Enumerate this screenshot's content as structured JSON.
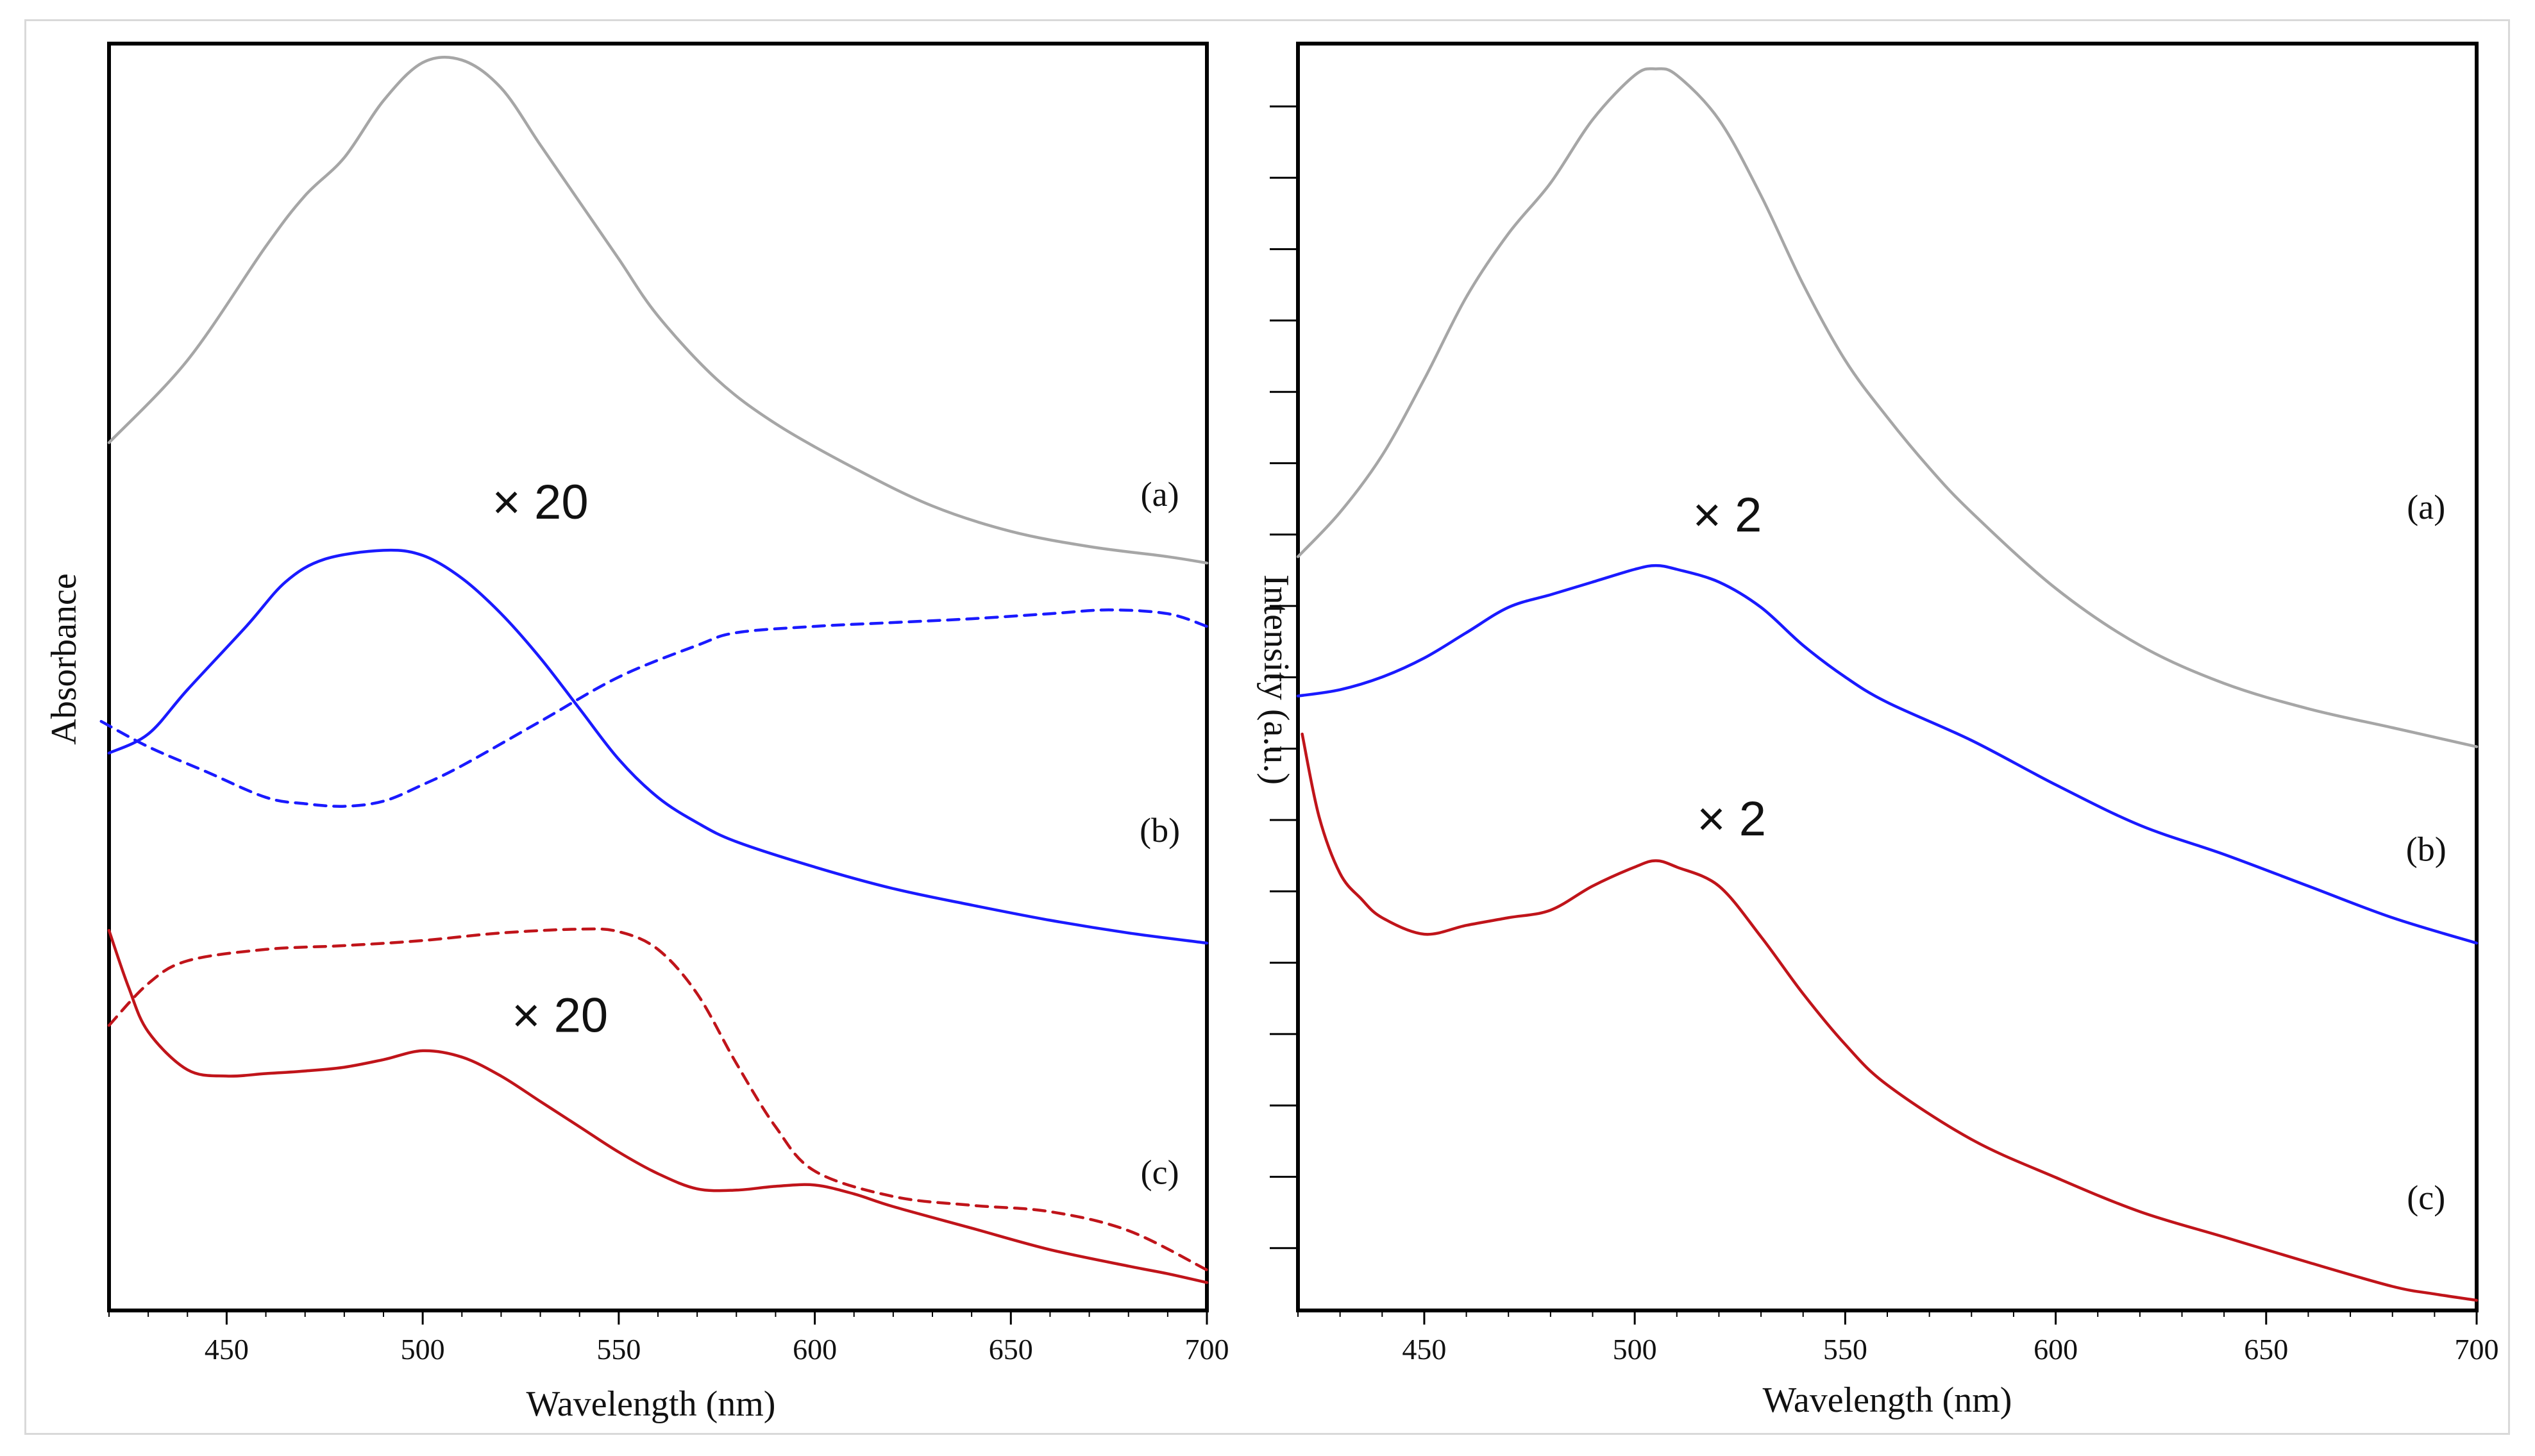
{
  "chart_data": [
    {
      "type": "line",
      "panel": "left",
      "xlabel": "Wavelength (nm)",
      "ylabel": "Absorbance",
      "xlim": [
        420,
        700
      ],
      "ylim": [
        0,
        100
      ],
      "xticks": [
        450,
        500,
        550,
        600,
        650,
        700
      ],
      "x_tick_labels": [
        "450",
        "500",
        "550",
        "600",
        "650",
        "700"
      ],
      "yticks_labeled": false,
      "legend": "none",
      "colors": {
        "gray": "#a6a6a6",
        "blue": "#1a1aff",
        "red": "#c0141a"
      },
      "series": [
        {
          "name": "(a)",
          "style": "solid",
          "color": "#a6a6a6",
          "x": [
            420,
            440,
            460,
            470,
            480,
            490,
            500,
            510,
            520,
            530,
            540,
            550,
            560,
            575,
            590,
            610,
            630,
            650,
            670,
            690,
            700
          ],
          "y": [
            68.5,
            75,
            84,
            88,
            91,
            95.5,
            98.5,
            98.7,
            96.5,
            92,
            87.5,
            83,
            78.5,
            73.5,
            70,
            66.5,
            63.5,
            61.5,
            60.3,
            59.5,
            59
          ]
        },
        {
          "name": "(b)",
          "style": "solid",
          "color": "#1a1aff",
          "x": [
            420,
            430,
            440,
            455,
            465,
            475,
            490,
            500,
            510,
            520,
            530,
            540,
            550,
            560,
            570,
            580,
            600,
            620,
            640,
            660,
            680,
            700
          ],
          "y": [
            44,
            45.5,
            49,
            54,
            57.5,
            59.3,
            60,
            59.6,
            57.8,
            55,
            51.5,
            47.5,
            43.5,
            40.5,
            38.5,
            37,
            35,
            33.3,
            32,
            30.8,
            29.8,
            29
          ]
        },
        {
          "name": "(b) dashed",
          "style": "dashed",
          "color": "#1a1aff",
          "x": [
            418,
            430,
            445,
            460,
            470,
            480,
            490,
            500,
            510,
            530,
            550,
            570,
            580,
            600,
            620,
            640,
            660,
            675,
            690,
            700
          ],
          "y": [
            46.5,
            44.5,
            42.5,
            40.5,
            40,
            39.8,
            40.2,
            41.5,
            43,
            46.5,
            50,
            52.5,
            53.5,
            54,
            54.3,
            54.6,
            55,
            55.3,
            55,
            54
          ]
        },
        {
          "name": "(c)",
          "style": "solid",
          "color": "#c0141a",
          "x": [
            420,
            425,
            430,
            440,
            450,
            460,
            470,
            480,
            490,
            500,
            510,
            520,
            530,
            540,
            550,
            560,
            570,
            580,
            590,
            600,
            610,
            620,
            640,
            660,
            680,
            690,
            700
          ],
          "y": [
            30,
            25.5,
            22,
            19,
            18.5,
            18.7,
            18.9,
            19.2,
            19.8,
            20.5,
            20,
            18.5,
            16.5,
            14.5,
            12.5,
            10.8,
            9.6,
            9.5,
            9.8,
            9.9,
            9.2,
            8.2,
            6.5,
            4.8,
            3.5,
            2.9,
            2.2
          ]
        },
        {
          "name": "(c) dashed",
          "style": "dashed",
          "color": "#c0141a",
          "x": [
            420,
            430,
            440,
            460,
            480,
            500,
            520,
            540,
            550,
            560,
            570,
            580,
            590,
            600,
            620,
            640,
            660,
            680,
            700
          ],
          "y": [
            22.5,
            25.8,
            27.6,
            28.5,
            28.8,
            29.2,
            29.8,
            30.1,
            29.9,
            28.5,
            25,
            19.5,
            14.5,
            11,
            9,
            8.3,
            7.8,
            6.3,
            3.2
          ]
        }
      ],
      "annotations": [
        {
          "text": "(a)",
          "x": 688,
          "y": 63.5
        },
        {
          "text": "(b)",
          "x": 688,
          "y": 37
        },
        {
          "text": "(c)",
          "x": 688,
          "y": 10
        },
        {
          "text": "× 20",
          "x": 530,
          "y": 62.5
        },
        {
          "text": "× 20",
          "x": 535,
          "y": 22
        }
      ]
    },
    {
      "type": "line",
      "panel": "right",
      "xlabel": "Wavelength (nm)",
      "ylabel": "Intensity (a.u.)",
      "xlim": [
        420,
        700
      ],
      "ylim": [
        0,
        100
      ],
      "xticks": [
        450,
        500,
        550,
        600,
        650,
        700
      ],
      "x_tick_labels": [
        "450",
        "500",
        "550",
        "600",
        "650",
        "700"
      ],
      "yticks_labeled": false,
      "legend": "none",
      "series": [
        {
          "name": "(a)",
          "style": "solid",
          "color": "#a6a6a6",
          "x": [
            420,
            430,
            440,
            450,
            460,
            470,
            480,
            490,
            500,
            505,
            510,
            520,
            530,
            540,
            550,
            560,
            570,
            580,
            600,
            620,
            640,
            660,
            680,
            700
          ],
          "y": [
            59.5,
            63,
            67.5,
            73.5,
            80,
            85,
            89,
            94,
            97.5,
            98,
            97.5,
            94,
            88,
            81,
            75,
            70.5,
            66.5,
            63,
            57,
            52.5,
            49.5,
            47.5,
            46,
            44.5
          ]
        },
        {
          "name": "(b)",
          "style": "solid",
          "color": "#1a1aff",
          "x": [
            420,
            430,
            440,
            450,
            460,
            470,
            480,
            490,
            500,
            505,
            510,
            520,
            530,
            540,
            550,
            560,
            580,
            600,
            620,
            640,
            660,
            680,
            700
          ],
          "y": [
            48.5,
            49,
            50,
            51.5,
            53.5,
            55.5,
            56.5,
            57.5,
            58.5,
            58.8,
            58.5,
            57.5,
            55.5,
            52.5,
            50,
            48,
            45,
            41.5,
            38.3,
            36,
            33.5,
            31,
            29
          ]
        },
        {
          "name": "(c)",
          "style": "solid",
          "color": "#c0141a",
          "x": [
            421,
            425,
            430,
            435,
            440,
            450,
            460,
            470,
            480,
            490,
            500,
            505,
            510,
            520,
            530,
            540,
            550,
            560,
            580,
            600,
            620,
            640,
            660,
            680,
            690,
            700
          ],
          "y": [
            45.5,
            39,
            34.5,
            32.5,
            31,
            29.7,
            30.4,
            31,
            31.6,
            33.5,
            35,
            35.5,
            35,
            33.5,
            29.5,
            25,
            21,
            17.8,
            13.5,
            10.5,
            7.8,
            5.8,
            3.8,
            1.9,
            1.3,
            0.8
          ]
        }
      ],
      "annotations": [
        {
          "text": "(a)",
          "x": 688,
          "y": 62.5
        },
        {
          "text": "(b)",
          "x": 688,
          "y": 35.5
        },
        {
          "text": "(c)",
          "x": 688,
          "y": 8
        },
        {
          "text": "× 2",
          "x": 522,
          "y": 61.5
        },
        {
          "text": "× 2",
          "x": 523,
          "y": 37.5
        }
      ]
    }
  ]
}
